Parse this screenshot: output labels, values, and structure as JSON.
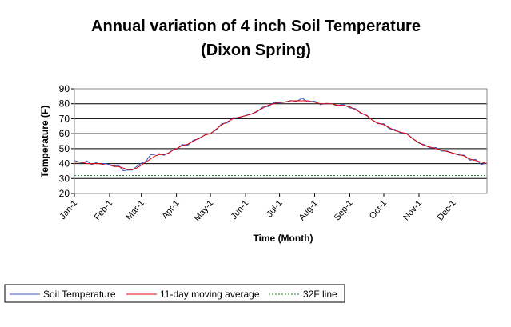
{
  "chart_data": {
    "type": "line",
    "title_line1": "Annual variation of 4 inch Soil Temperature",
    "title_line2": "(Dixon Spring)",
    "xlabel": "Time (Month)",
    "ylabel": "Temperature (F)",
    "ylim": [
      20,
      90
    ],
    "yticks": [
      20,
      30,
      40,
      50,
      60,
      70,
      80,
      90
    ],
    "xlim": [
      1,
      365
    ],
    "month_ticks": [
      {
        "label": "Jan-1",
        "day": 1
      },
      {
        "label": "Feb-1",
        "day": 32
      },
      {
        "label": "Mar-1",
        "day": 60
      },
      {
        "label": "Apr-1",
        "day": 91
      },
      {
        "label": "May-1",
        "day": 121
      },
      {
        "label": "Jun-1",
        "day": 152
      },
      {
        "label": "Jul-1",
        "day": 182
      },
      {
        "label": "Aug-1",
        "day": 213
      },
      {
        "label": "Sep-1",
        "day": 244
      },
      {
        "label": "Oct-1",
        "day": 274
      },
      {
        "label": "Nov-1",
        "day": 305
      },
      {
        "label": "Dec-1",
        "day": 335
      }
    ],
    "grid": true,
    "legend_position": "bottom-left",
    "series": [
      {
        "name": "Soil Temperature",
        "color": "#3355cc",
        "style": "solid",
        "x": [
          1,
          4,
          8,
          12,
          16,
          20,
          24,
          28,
          32,
          36,
          40,
          44,
          48,
          52,
          56,
          60,
          64,
          68,
          72,
          76,
          80,
          84,
          88,
          91,
          96,
          101,
          106,
          111,
          116,
          121,
          126,
          131,
          136,
          141,
          146,
          152,
          157,
          162,
          167,
          172,
          177,
          182,
          187,
          192,
          197,
          202,
          207,
          213,
          218,
          223,
          228,
          233,
          238,
          244,
          249,
          254,
          259,
          264,
          269,
          274,
          279,
          284,
          289,
          294,
          299,
          305,
          310,
          315,
          320,
          325,
          330,
          335,
          340,
          345,
          350,
          355,
          360,
          365
        ],
        "y": [
          42,
          41,
          41,
          41,
          40,
          40,
          40,
          40,
          39,
          39,
          38,
          36,
          35,
          36,
          38,
          40,
          42,
          45,
          47,
          46,
          46,
          47,
          49,
          50,
          52,
          53,
          55,
          57,
          59,
          60,
          63,
          66,
          68,
          70,
          71,
          72,
          73,
          75,
          77,
          79,
          80,
          81,
          81,
          82,
          82,
          83,
          82,
          81,
          80,
          80,
          80,
          79,
          79,
          78,
          76,
          74,
          72,
          69,
          67,
          66,
          64,
          62,
          61,
          60,
          57,
          54,
          52,
          51,
          50,
          49,
          48,
          47,
          46,
          45,
          43,
          42,
          40,
          40
        ]
      },
      {
        "name": "11-day moving average",
        "color": "#dd0000",
        "style": "solid",
        "x": [
          1,
          4,
          8,
          12,
          16,
          20,
          24,
          28,
          32,
          36,
          40,
          44,
          48,
          52,
          56,
          60,
          64,
          68,
          72,
          76,
          80,
          84,
          88,
          91,
          96,
          101,
          106,
          111,
          116,
          121,
          126,
          131,
          136,
          141,
          146,
          152,
          157,
          162,
          167,
          172,
          177,
          182,
          187,
          192,
          197,
          202,
          207,
          213,
          218,
          223,
          228,
          233,
          238,
          244,
          249,
          254,
          259,
          264,
          269,
          274,
          279,
          284,
          289,
          294,
          299,
          305,
          310,
          315,
          320,
          325,
          330,
          335,
          340,
          345,
          350,
          355,
          360,
          365
        ],
        "y": [
          41,
          41,
          41,
          40,
          40,
          40,
          40,
          39,
          39,
          38,
          38,
          37,
          36,
          36,
          37,
          39,
          41,
          43,
          45,
          46,
          46,
          47,
          49,
          50,
          52,
          53,
          55,
          57,
          59,
          60,
          63,
          66,
          68,
          70,
          71,
          72,
          73,
          75,
          77,
          79,
          80,
          81,
          81,
          82,
          82,
          82,
          82,
          81,
          80,
          80,
          80,
          79,
          79,
          78,
          76,
          74,
          72,
          69,
          67,
          66,
          64,
          62,
          61,
          60,
          57,
          54,
          52,
          51,
          50,
          49,
          48,
          47,
          46,
          45,
          43,
          42,
          41,
          40
        ]
      },
      {
        "name": "32F line",
        "color": "#228822",
        "style": "dashed",
        "x": [
          1,
          365
        ],
        "y": [
          32,
          32
        ]
      }
    ]
  }
}
